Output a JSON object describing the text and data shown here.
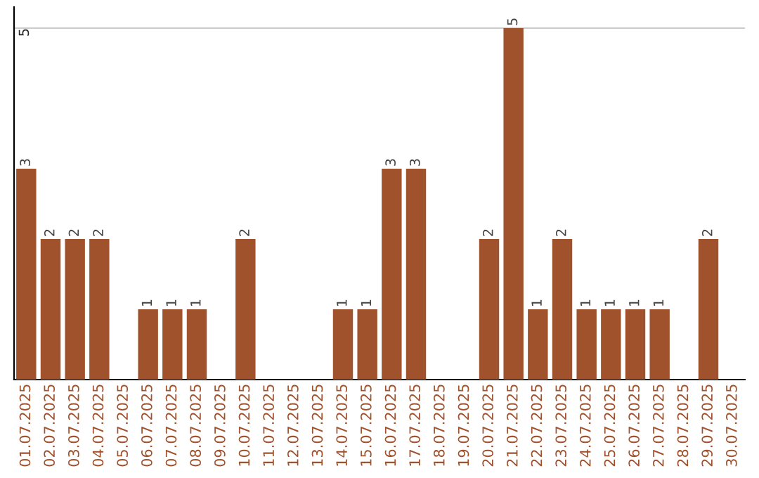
{
  "chart_data": {
    "type": "bar",
    "categories": [
      "01.07.2025",
      "02.07.2025",
      "03.07.2025",
      "04.07.2025",
      "05.07.2025",
      "06.07.2025",
      "07.07.2025",
      "08.07.2025",
      "09.07.2025",
      "10.07.2025",
      "11.07.2025",
      "12.07.2025",
      "13.07.2025",
      "14.07.2025",
      "15.07.2025",
      "16.07.2025",
      "17.07.2025",
      "18.07.2025",
      "19.07.2025",
      "20.07.2025",
      "21.07.2025",
      "22.07.2025",
      "23.07.2025",
      "24.07.2025",
      "25.07.2025",
      "26.07.2025",
      "27.07.2025",
      "28.07.2025",
      "29.07.2025",
      "30.07.2025"
    ],
    "values": [
      3,
      2,
      2,
      2,
      0,
      1,
      1,
      1,
      0,
      2,
      0,
      0,
      0,
      1,
      1,
      3,
      3,
      0,
      0,
      2,
      5,
      1,
      2,
      1,
      1,
      1,
      1,
      0,
      2,
      0
    ],
    "value_labels": [
      "3",
      "2",
      "2",
      "2",
      null,
      "1",
      "1",
      "1",
      null,
      "2",
      null,
      null,
      null,
      "1",
      "1",
      "3",
      "3",
      null,
      null,
      "2",
      "5",
      "1",
      "2",
      "1",
      "1",
      "1",
      "1",
      null,
      "2",
      null
    ],
    "color": "#a0522d",
    "ylim": [
      0,
      5.3
    ],
    "yticks": [
      5
    ],
    "grid": "y"
  }
}
